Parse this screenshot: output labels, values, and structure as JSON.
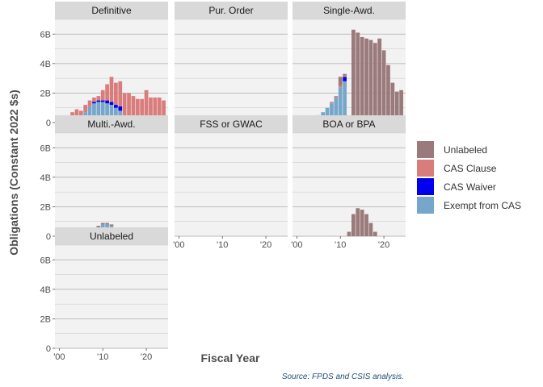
{
  "chart_data": {
    "type": "bar",
    "stacked": true,
    "faceted": true,
    "xlabel": "Fiscal Year",
    "ylabel": "Obligations (Constant 2022 $s)",
    "caption": "Source: FPDS and CSIS analysis.",
    "xlim": [
      1999,
      2025
    ],
    "ylim": [
      0,
      7
    ],
    "x_ticks": [
      2000,
      2010,
      2020
    ],
    "x_tick_labels": [
      "'00",
      "'10",
      "'20"
    ],
    "y_ticks": [
      0,
      2,
      4,
      6
    ],
    "y_tick_labels": [
      "0",
      "2B",
      "4B",
      "6B"
    ],
    "stack_order": [
      "Exempt from CAS",
      "CAS Waiver",
      "CAS Clause",
      "Unlabeled"
    ],
    "legend": [
      {
        "name": "Unlabeled",
        "color": "#9a7a7b"
      },
      {
        "name": "CAS Clause",
        "color": "#d97d7c"
      },
      {
        "name": "CAS Waiver",
        "color": "#0000ee"
      },
      {
        "name": "Exempt from CAS",
        "color": "#76a6c9"
      }
    ],
    "legend_position": "right",
    "grid": true,
    "years": [
      2000,
      2001,
      2002,
      2003,
      2004,
      2005,
      2006,
      2007,
      2008,
      2009,
      2010,
      2011,
      2012,
      2013,
      2014,
      2015,
      2016,
      2017,
      2018,
      2019,
      2020,
      2021,
      2022,
      2023,
      2024
    ],
    "facets": [
      {
        "name": "Definitive",
        "series": {
          "Exempt from CAS": [
            0,
            0,
            0,
            0.1,
            0.4,
            0.4,
            0.7,
            1.1,
            1.3,
            1.4,
            1.4,
            1.3,
            1.2,
            1.0,
            0.8,
            0.2,
            0.1,
            0.1,
            0.1,
            0.1,
            0.1,
            0.1,
            0.1,
            0.1,
            0.1
          ],
          "CAS Waiver": [
            0,
            0,
            0,
            0,
            0,
            0,
            0,
            0,
            0.1,
            0.1,
            0.1,
            0.2,
            0.2,
            0.2,
            0.3,
            0,
            0,
            0,
            0,
            0,
            0,
            0,
            0,
            0,
            0
          ],
          "CAS Clause": [
            0,
            0,
            0,
            0.6,
            0.5,
            0.4,
            0.5,
            0.4,
            0.3,
            0.3,
            0.7,
            1.1,
            1.7,
            1.5,
            1.7,
            1.8,
            1.9,
            1.7,
            1.5,
            1.5,
            2.1,
            1.6,
            1.6,
            1.6,
            1.4
          ],
          "Unlabeled": [
            0,
            0,
            0,
            0,
            0,
            0,
            0,
            0,
            0,
            0,
            0,
            0,
            0,
            0,
            0,
            0,
            0,
            0,
            0,
            0,
            0,
            0,
            0,
            0,
            0
          ]
        }
      },
      {
        "name": "Pur. Order",
        "series": {
          "Exempt from CAS": [
            0,
            0,
            0,
            0,
            0,
            0,
            0,
            0,
            0,
            0,
            0,
            0,
            0,
            0,
            0,
            0,
            0,
            0,
            0,
            0,
            0,
            0,
            0,
            0,
            0
          ],
          "CAS Waiver": [
            0,
            0,
            0,
            0,
            0,
            0,
            0,
            0,
            0,
            0,
            0,
            0,
            0,
            0,
            0,
            0,
            0,
            0,
            0,
            0,
            0,
            0,
            0,
            0,
            0
          ],
          "CAS Clause": [
            0,
            0,
            0,
            0,
            0,
            0,
            0,
            0,
            0,
            0,
            0,
            0,
            0,
            0,
            0,
            0,
            0,
            0,
            0,
            0,
            0,
            0,
            0,
            0,
            0
          ],
          "Unlabeled": [
            0,
            0,
            0,
            0,
            0,
            0,
            0,
            0,
            0,
            0,
            0,
            0,
            0,
            0,
            0,
            0,
            0,
            0,
            0,
            0,
            0,
            0,
            0,
            0,
            0
          ]
        }
      },
      {
        "name": "Single-Awd.",
        "series": {
          "Exempt from CAS": [
            0,
            0,
            0,
            0,
            0,
            0.5,
            0.7,
            1.0,
            1.3,
            1.7,
            2.4,
            2.8,
            0.1,
            0,
            0,
            0,
            0,
            0,
            0,
            0,
            0,
            0,
            0.2,
            0.3,
            0.3
          ],
          "CAS Waiver": [
            0,
            0,
            0,
            0,
            0,
            0,
            0,
            0,
            0,
            0,
            0,
            0.3,
            0,
            0,
            0,
            0,
            0,
            0,
            0,
            0,
            0,
            0,
            0,
            0,
            0
          ],
          "CAS Clause": [
            0,
            0,
            0,
            0,
            0,
            0,
            0,
            0,
            0.1,
            0.1,
            0.1,
            0.1,
            0.1,
            0.2,
            0.2,
            0.2,
            0.2,
            0.2,
            0.2,
            0.2,
            0.1,
            0.1,
            0.1,
            0.1,
            0.1
          ],
          "Unlabeled": [
            0,
            0,
            0,
            0,
            0,
            0,
            0,
            0,
            0,
            0,
            0.6,
            0.1,
            0.2,
            6.1,
            5.9,
            5.6,
            5.5,
            5.4,
            5.2,
            5.5,
            4.8,
            3.8,
            2.4,
            1.7,
            1.8
          ]
        }
      },
      {
        "name": "Multi.-Awd.",
        "series": {
          "Exempt from CAS": [
            0,
            0,
            0,
            0,
            0.03,
            0.1,
            0.2,
            0.3,
            0.5,
            0.6,
            0.8,
            0.8,
            0.7,
            0.4,
            0.1,
            0.05,
            0.03,
            0.02,
            0.02,
            0.02,
            0,
            0,
            0,
            0,
            0
          ],
          "CAS Waiver": [
            0,
            0,
            0,
            0,
            0,
            0,
            0,
            0,
            0,
            0,
            0,
            0,
            0,
            0,
            0,
            0,
            0,
            0,
            0,
            0,
            0,
            0,
            0,
            0,
            0
          ],
          "CAS Clause": [
            0,
            0,
            0,
            0,
            0,
            0,
            0,
            0,
            0,
            0,
            0,
            0,
            0,
            0,
            0,
            0,
            0,
            0,
            0,
            0,
            0,
            0,
            0,
            0,
            0
          ],
          "Unlabeled": [
            0,
            0,
            0,
            0,
            0,
            0,
            0,
            0,
            0.1,
            0.1,
            0.1,
            0.1,
            0.1,
            0.2,
            0.4,
            0.3,
            0.2,
            0.1,
            0.2,
            0.1,
            0,
            0,
            0,
            0,
            0
          ]
        }
      },
      {
        "name": "FSS or GWAC",
        "series": {
          "Exempt from CAS": [
            0,
            0,
            0,
            0,
            0,
            0,
            0,
            0,
            0,
            0,
            0,
            0,
            0,
            0,
            0,
            0,
            0,
            0,
            0,
            0,
            0,
            0,
            0,
            0,
            0
          ],
          "CAS Waiver": [
            0,
            0,
            0,
            0,
            0,
            0,
            0,
            0,
            0,
            0,
            0,
            0,
            0,
            0,
            0,
            0,
            0,
            0,
            0,
            0,
            0,
            0,
            0,
            0,
            0
          ],
          "CAS Clause": [
            0,
            0,
            0,
            0,
            0,
            0,
            0,
            0,
            0,
            0,
            0,
            0,
            0,
            0,
            0,
            0,
            0,
            0,
            0,
            0,
            0,
            0,
            0,
            0,
            0
          ],
          "Unlabeled": [
            0,
            0,
            0,
            0,
            0,
            0,
            0,
            0,
            0,
            0,
            0,
            0,
            0,
            0,
            0,
            0,
            0,
            0,
            0,
            0,
            0,
            0,
            0,
            0,
            0
          ]
        }
      },
      {
        "name": "BOA or BPA",
        "series": {
          "Exempt from CAS": [
            0,
            0,
            0,
            0,
            0,
            0,
            0,
            0,
            0,
            0,
            0,
            0,
            0,
            0,
            0,
            0,
            0,
            0,
            0,
            0,
            0,
            0,
            0,
            0,
            0
          ],
          "CAS Waiver": [
            0,
            0,
            0,
            0,
            0,
            0,
            0,
            0,
            0,
            0,
            0,
            0,
            0,
            0,
            0,
            0,
            0,
            0,
            0,
            0,
            0,
            0,
            0,
            0,
            0
          ],
          "CAS Clause": [
            0,
            0,
            0,
            0,
            0,
            0,
            0,
            0,
            0,
            0,
            0,
            0,
            0,
            0,
            0,
            0,
            0,
            0,
            0,
            0,
            0,
            0,
            0,
            0,
            0
          ],
          "Unlabeled": [
            0,
            0,
            0,
            0,
            0,
            0,
            0,
            0,
            0,
            0,
            0,
            0,
            0.3,
            1.5,
            1.9,
            1.8,
            1.5,
            0.9,
            0.3,
            0,
            0,
            0,
            0,
            0,
            0
          ]
        }
      },
      {
        "name": "Unlabeled",
        "series": {
          "Exempt from CAS": [
            0,
            0,
            0,
            0,
            0,
            0,
            0,
            0,
            0,
            0,
            0,
            0,
            0,
            0,
            0,
            0,
            0,
            0,
            0,
            0,
            0,
            0,
            0,
            0,
            0
          ],
          "CAS Waiver": [
            0,
            0,
            0,
            0,
            0,
            0,
            0,
            0,
            0,
            0,
            0,
            0,
            0,
            0,
            0,
            0,
            0,
            0,
            0,
            0,
            0,
            0,
            0,
            0,
            0
          ],
          "CAS Clause": [
            0,
            0,
            0,
            0,
            0,
            0,
            0,
            0,
            0,
            0,
            0,
            0,
            0,
            0,
            0,
            0,
            0,
            0,
            0,
            0,
            0,
            0,
            0,
            0,
            0
          ],
          "Unlabeled": [
            0,
            0,
            0,
            0,
            0,
            0,
            0,
            0,
            0,
            0,
            0,
            0,
            0,
            0,
            0,
            0,
            0,
            0,
            0,
            0,
            0,
            0,
            0,
            0,
            0
          ]
        }
      }
    ]
  }
}
